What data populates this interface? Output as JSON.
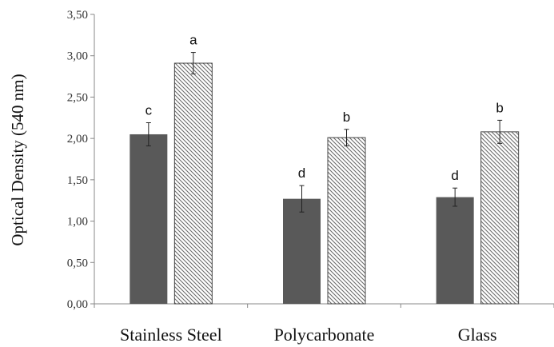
{
  "chart_data": {
    "type": "bar",
    "title": "",
    "xlabel": "",
    "ylabel": "Optical Density (540 nm)",
    "ylim": [
      0,
      3.5
    ],
    "yticks": [
      "0,00",
      "0,50",
      "1,00",
      "1,50",
      "2,00",
      "2,50",
      "3,00",
      "3,50"
    ],
    "grid": false,
    "legend": "none",
    "categories": [
      "Stainless Steel",
      "Polycarbonate",
      "Glass"
    ],
    "series": [
      {
        "style": "solid",
        "color": "#595959",
        "values": [
          2.05,
          1.27,
          1.29
        ],
        "errors": [
          0.14,
          0.16,
          0.11
        ],
        "labels": [
          "c",
          "d",
          "d"
        ]
      },
      {
        "style": "hatched",
        "color": "#595959",
        "values": [
          2.91,
          2.01,
          2.08
        ],
        "errors": [
          0.13,
          0.1,
          0.14
        ],
        "labels": [
          "a",
          "b",
          "b"
        ]
      }
    ]
  }
}
